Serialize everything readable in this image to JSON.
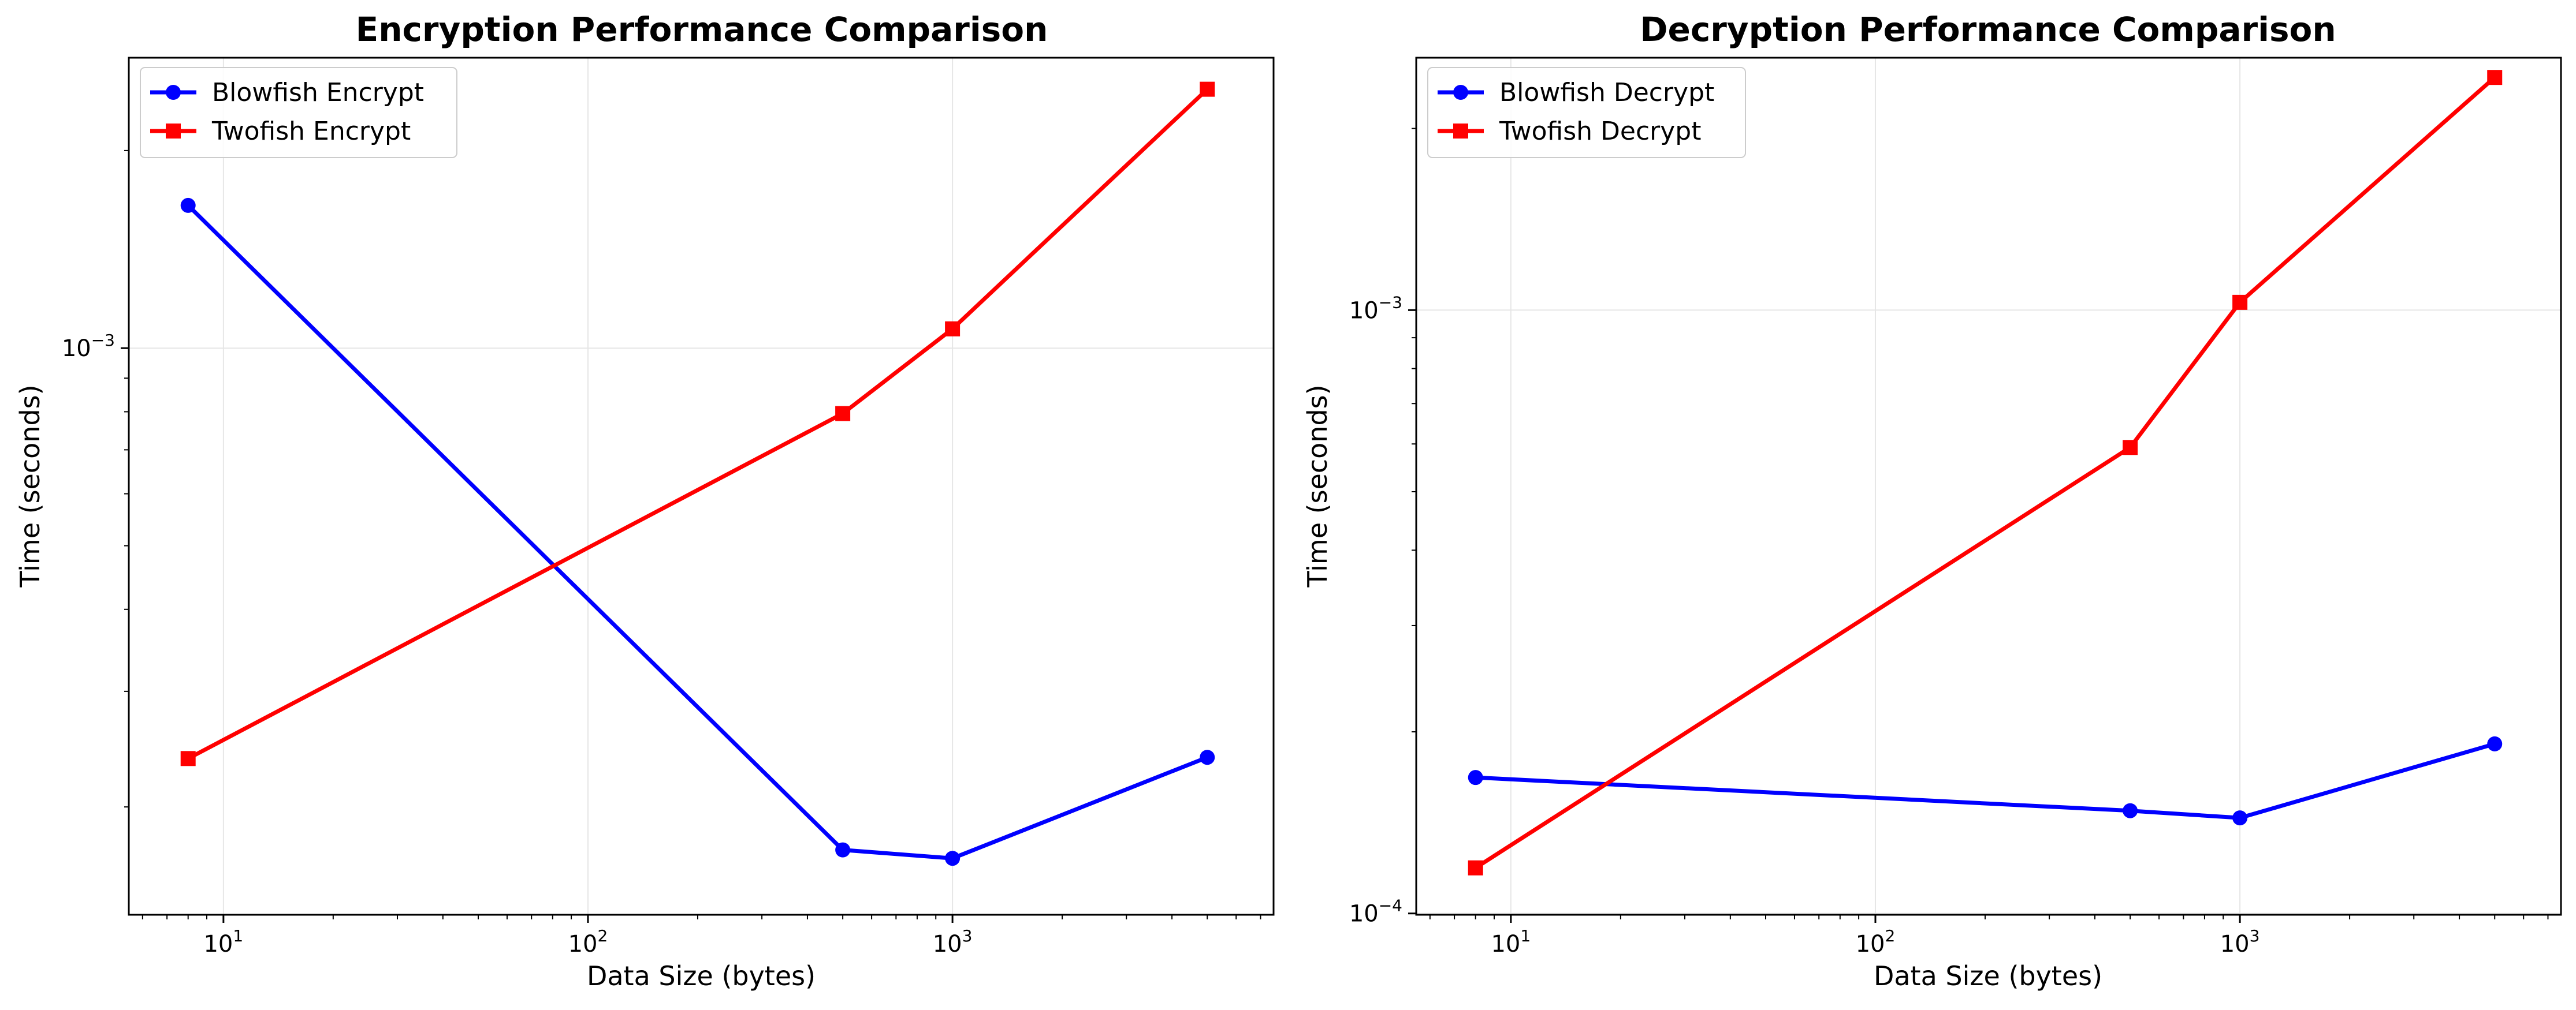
{
  "chart_data": [
    {
      "type": "line",
      "title": "Encryption Performance Comparison",
      "xlabel": "Data Size (bytes)",
      "ylabel": "Time (seconds)",
      "xscale": "log",
      "yscale": "log",
      "xlim": [
        5.5,
        7600
      ],
      "ylim": [
        0.000137,
        0.00277
      ],
      "grid": true,
      "legend_position": "upper-left",
      "x_ticks": [
        {
          "value": 10,
          "base": "10",
          "exp": "1"
        },
        {
          "value": 100,
          "base": "10",
          "exp": "2"
        },
        {
          "value": 1000,
          "base": "10",
          "exp": "3"
        }
      ],
      "y_ticks": [
        {
          "value": 0.001,
          "base": "10",
          "exp": "−3"
        }
      ],
      "series": [
        {
          "name": "Blowfish Encrypt",
          "color": "#0000ff",
          "marker": "circle",
          "x": [
            8,
            500,
            1000,
            5000
          ],
          "y": [
            0.00165,
            0.000172,
            0.000167,
            0.000238
          ]
        },
        {
          "name": "Twofish Encrypt",
          "color": "#ff0000",
          "marker": "square",
          "x": [
            8,
            500,
            1000,
            5000
          ],
          "y": [
            0.000237,
            0.000795,
            0.00107,
            0.00248
          ]
        }
      ]
    },
    {
      "type": "line",
      "title": "Decryption Performance Comparison",
      "xlabel": "Data Size (bytes)",
      "ylabel": "Time (seconds)",
      "xscale": "log",
      "yscale": "log",
      "xlim": [
        5.5,
        7600
      ],
      "ylim": [
        9.95e-05,
        0.00262
      ],
      "grid": true,
      "legend_position": "upper-left",
      "x_ticks": [
        {
          "value": 10,
          "base": "10",
          "exp": "1"
        },
        {
          "value": 100,
          "base": "10",
          "exp": "2"
        },
        {
          "value": 1000,
          "base": "10",
          "exp": "3"
        }
      ],
      "y_ticks": [
        {
          "value": 0.0001,
          "base": "10",
          "exp": "−4"
        },
        {
          "value": 0.001,
          "base": "10",
          "exp": "−3"
        }
      ],
      "series": [
        {
          "name": "Blowfish Decrypt",
          "color": "#0000ff",
          "marker": "circle",
          "x": [
            8,
            500,
            1000,
            5000
          ],
          "y": [
            0.000168,
            0.000148,
            0.000144,
            0.000191
          ]
        },
        {
          "name": "Twofish Decrypt",
          "color": "#ff0000",
          "marker": "square",
          "x": [
            8,
            500,
            1000,
            5000
          ],
          "y": [
            0.000119,
            0.000592,
            0.00103,
            0.00243
          ]
        }
      ]
    }
  ]
}
